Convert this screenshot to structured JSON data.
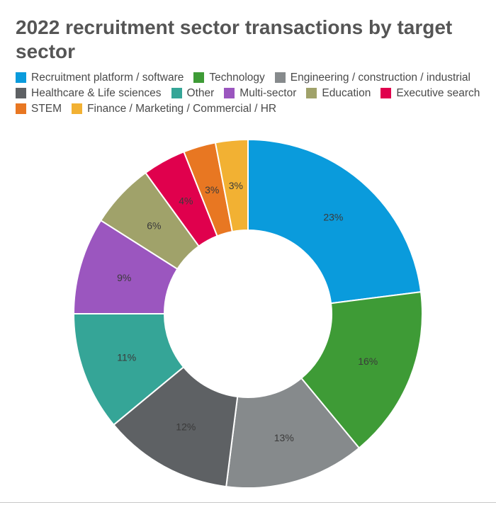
{
  "chart_data": {
    "type": "pie",
    "title": "2022 recruitment sector transactions by target sector",
    "legend_placement": "top",
    "donut": true,
    "slices": [
      {
        "name": "Recruitment platform / software",
        "value": 23,
        "label": "23%",
        "color": "#0a9bdc"
      },
      {
        "name": "Technology",
        "value": 16,
        "label": "16%",
        "color": "#3e9b36"
      },
      {
        "name": "Engineering / construction / industrial",
        "value": 13,
        "label": "13%",
        "color": "#868a8c"
      },
      {
        "name": "Healthcare & Life sciences",
        "value": 12,
        "label": "12%",
        "color": "#5e6164"
      },
      {
        "name": "Other",
        "value": 11,
        "label": "11%",
        "color": "#35a597"
      },
      {
        "name": "Multi-sector",
        "value": 9,
        "label": "9%",
        "color": "#9b56bf"
      },
      {
        "name": "Education",
        "value": 6,
        "label": "6%",
        "color": "#a0a26a"
      },
      {
        "name": "Executive search",
        "value": 4,
        "label": "4%",
        "color": "#e0004d"
      },
      {
        "name": "STEM",
        "value": 3,
        "label": "3%",
        "color": "#e87722"
      },
      {
        "name": "Finance / Marketing / Commercial / HR",
        "value": 3,
        "label": "3%",
        "color": "#f2b133"
      }
    ]
  }
}
